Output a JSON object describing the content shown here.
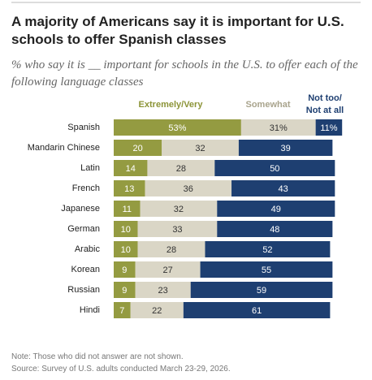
{
  "chart_data": {
    "type": "stacked-bar",
    "title": "A majority of Americans say it is important for U.S. schools to offer Spanish classes",
    "subtitle": "% who say it is __ important for schools in the U.S. to offer each of the following language classes",
    "categories": [
      "Spanish",
      "Mandarin Chinese",
      "Latin",
      "French",
      "Japanese",
      "German",
      "Arabic",
      "Korean",
      "Russian",
      "Hindi"
    ],
    "series": [
      {
        "name": "Extremely/Very",
        "color": "#949b41",
        "label_color": "#ffffff",
        "values": [
          53,
          20,
          14,
          13,
          11,
          10,
          10,
          9,
          9,
          7
        ],
        "value_labels": [
          "53%",
          "20",
          "14",
          "13",
          "11",
          "10",
          "10",
          "9",
          "9",
          "7"
        ]
      },
      {
        "name": "Somewhat",
        "color": "#dad6c6",
        "label_color": "#333333",
        "values": [
          31,
          32,
          28,
          36,
          32,
          33,
          28,
          27,
          23,
          22
        ],
        "value_labels": [
          "31%",
          "32",
          "28",
          "36",
          "32",
          "33",
          "28",
          "27",
          "23",
          "22"
        ]
      },
      {
        "name": "Not too/ Not at all",
        "color": "#1e3f71",
        "label_color": "#ffffff",
        "values": [
          11,
          39,
          50,
          43,
          49,
          48,
          52,
          55,
          59,
          61
        ],
        "value_labels": [
          "11%",
          "39",
          "50",
          "43",
          "49",
          "48",
          "52",
          "55",
          "59",
          "61"
        ]
      }
    ],
    "legend_colors": [
      "#8c9438",
      "#a9a48d",
      "#1e3f71"
    ],
    "xlim": [
      0,
      100
    ],
    "notes": [
      "Note: Those who did not answer are not shown.",
      "Source: Survey of U.S. adults conducted March 23-29, 2026."
    ]
  }
}
